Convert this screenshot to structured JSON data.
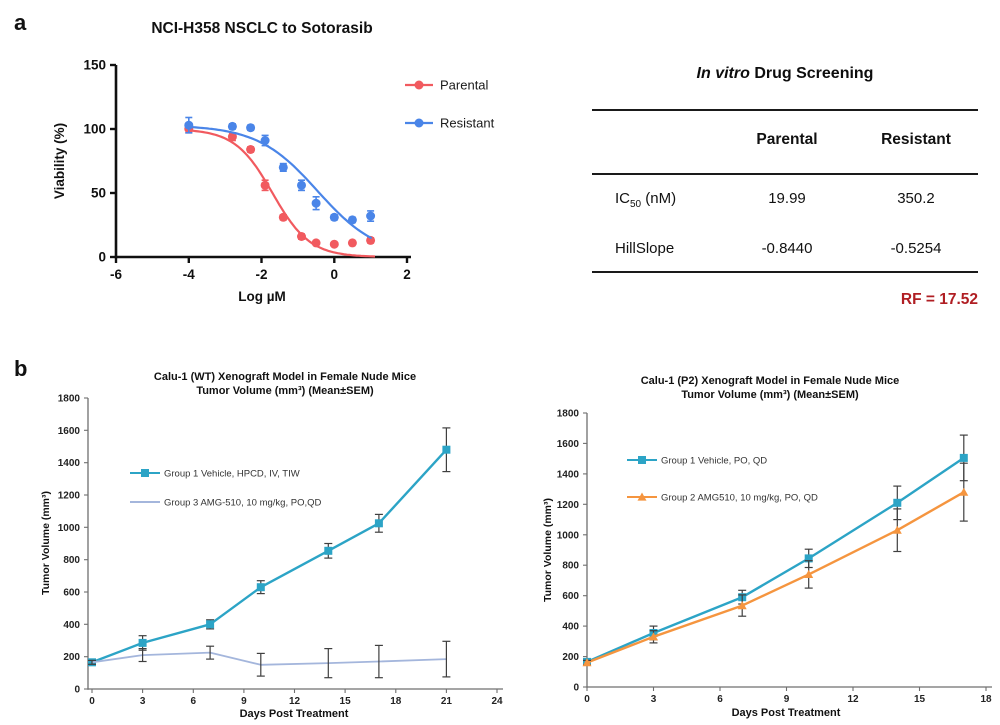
{
  "panel_labels": {
    "a": "a",
    "b": "b"
  },
  "table": {
    "title_italic": "In vitro",
    "title_rest": " Drug Screening",
    "col_headers": [
      "Parental",
      "Resistant"
    ],
    "rows": [
      {
        "label_pre": "IC",
        "label_sub": "50",
        "label_post": " (nM)",
        "parental": "19.99",
        "resistant": "350.2"
      },
      {
        "label_pre": "HillSlope",
        "label_sub": "",
        "label_post": "",
        "parental": "-0.8440",
        "resistant": "-0.5254"
      }
    ],
    "rf_note": "RF = 17.52",
    "rf_color": "#B01E23"
  },
  "chart_data": [
    {
      "id": "dose-response",
      "type": "scatter",
      "title": "NCI-H358 NSCLC to Sotorasib",
      "xlabel": "Log µM",
      "ylabel": "Viability (%)",
      "xlim": [
        -6,
        2
      ],
      "xticks": [
        -6,
        -4,
        -2,
        0,
        2
      ],
      "ylim": [
        0,
        150
      ],
      "yticks": [
        0,
        50,
        100,
        150
      ],
      "x": [
        -4,
        -2.8,
        -2.3,
        -1.9,
        -1.4,
        -0.9,
        -0.5,
        0,
        0.5,
        1
      ],
      "legend_position": "right-of-plot",
      "series": [
        {
          "name": "Parental",
          "color": "#F15A5F",
          "marker": "circle",
          "y": [
            100,
            94,
            84,
            56,
            31,
            16,
            11,
            10,
            11,
            13
          ],
          "err": [
            3,
            3,
            2,
            4,
            2,
            2,
            1,
            1,
            1,
            2
          ],
          "fit": {
            "log_ic50": -1.699,
            "hillslope": -0.844,
            "top": 100,
            "bottom": 0,
            "range": [
              -4,
              1.12
            ]
          }
        },
        {
          "name": "Resistant",
          "color": "#4A85E8",
          "marker": "circle",
          "y": [
            103,
            102,
            101,
            91,
            70,
            56,
            42,
            31,
            29,
            32
          ],
          "err": [
            6,
            2,
            2,
            4,
            3,
            4,
            5,
            2,
            2,
            4
          ],
          "fit": {
            "log_ic50": -0.4557,
            "hillslope": -0.5254,
            "top": 103,
            "bottom": 0,
            "range": [
              -4,
              1.03
            ]
          }
        }
      ]
    },
    {
      "id": "xeno-wt",
      "type": "line",
      "title_line1": "Calu-1 (WT) Xenograft Model in Female Nude Mice",
      "title_line2": "Tumor Volume (mm³) (Mean±SEM)",
      "xlabel": "Days Post Treatment",
      "ylabel": "Tumor Volume (mm³)",
      "xlim": [
        0,
        24
      ],
      "xticks": [
        0,
        3,
        6,
        9,
        12,
        15,
        18,
        21,
        24
      ],
      "ylim": [
        0,
        1800
      ],
      "yticks": [
        0,
        200,
        400,
        600,
        800,
        1000,
        1200,
        1400,
        1600,
        1800
      ],
      "x": [
        0,
        3,
        7,
        10,
        14,
        17,
        21
      ],
      "err_color": "#3f3f3f",
      "legend_position": "upper-left-inside",
      "series": [
        {
          "name": "Group 1 Vehicle, HPCD, IV, TIW",
          "color": "#2CA4C6",
          "marker": "square",
          "y": [
            165,
            285,
            400,
            630,
            855,
            1025,
            1480
          ],
          "err": [
            18,
            45,
            28,
            40,
            45,
            55,
            135
          ]
        },
        {
          "name": "Group 3 AMG-510, 10 mg/kg, PO,QD",
          "color": "#A4B6DC",
          "marker": "none",
          "lw": 1.8,
          "y": [
            165,
            210,
            225,
            150,
            160,
            170,
            185
          ],
          "err": [
            12,
            40,
            40,
            70,
            90,
            100,
            110
          ]
        }
      ]
    },
    {
      "id": "xeno-p2",
      "type": "line",
      "title_line1": "Calu-1 (P2) Xenograft Model in Female Nude Mice",
      "title_line2": "Tumor Volume (mm³) (Mean±SEM)",
      "xlabel": "Days Post Treatment",
      "ylabel": "Tumor Volume (mm³)",
      "xlim": [
        0,
        18
      ],
      "xticks": [
        0,
        3,
        6,
        9,
        12,
        15,
        18
      ],
      "ylim": [
        0,
        1800
      ],
      "yticks": [
        0,
        200,
        400,
        600,
        800,
        1000,
        1200,
        1400,
        1600,
        1800
      ],
      "x": [
        0,
        3,
        7,
        10,
        14,
        17
      ],
      "err_color": "#3f3f3f",
      "legend_position": "upper-left-inside",
      "series": [
        {
          "name": "Group 1 Vehicle, PO, QD",
          "color": "#2CA4C6",
          "marker": "square",
          "y": [
            165,
            355,
            590,
            845,
            1210,
            1505
          ],
          "err": [
            18,
            45,
            45,
            60,
            110,
            150
          ]
        },
        {
          "name": "Group 2 AMG510, 10 mg/kg, PO, QD",
          "color": "#F5953F",
          "marker": "triangle",
          "y": [
            160,
            330,
            535,
            740,
            1030,
            1280
          ],
          "err": [
            15,
            40,
            70,
            90,
            140,
            190
          ]
        }
      ]
    }
  ]
}
